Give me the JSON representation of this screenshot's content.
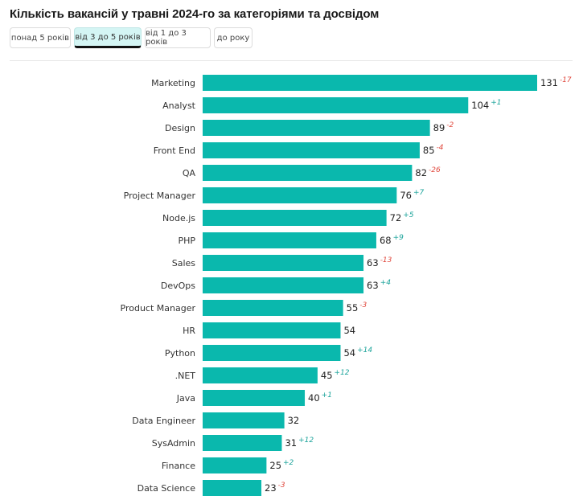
{
  "header": {
    "title": "Кількість вакансій у травні 2024-го за категоріями та досвідом"
  },
  "tabs": [
    {
      "label": "понад 5 років",
      "active": false
    },
    {
      "label": "від 3 до 5 років",
      "active": true
    },
    {
      "label": "від 1 до 3 років",
      "active": false
    },
    {
      "label": "до року",
      "active": false
    }
  ],
  "colors": {
    "bar": "#0ab8ad",
    "positive": "#1aa39a",
    "negative": "#e0463b"
  },
  "chart_data": {
    "type": "bar",
    "orientation": "horizontal",
    "categories": [
      "Marketing",
      "Analyst",
      "Design",
      "Front End",
      "QA",
      "Project Manager",
      "Node.js",
      "PHP",
      "Sales",
      "DevOps",
      "Product Manager",
      "HR",
      "Python",
      ".NET",
      "Java",
      "Data Engineer",
      "SysAdmin",
      "Finance",
      "Data Science"
    ],
    "values": [
      131,
      104,
      89,
      85,
      82,
      76,
      72,
      68,
      63,
      63,
      55,
      54,
      54,
      45,
      40,
      32,
      31,
      25,
      23
    ],
    "changes": [
      "-17",
      "+1",
      "-2",
      "-4",
      "-26",
      "+7",
      "+5",
      "+9",
      "-13",
      "+4",
      "-3",
      "",
      "+14",
      "+12",
      "+1",
      "",
      "+12",
      "+2",
      "-3"
    ]
  }
}
